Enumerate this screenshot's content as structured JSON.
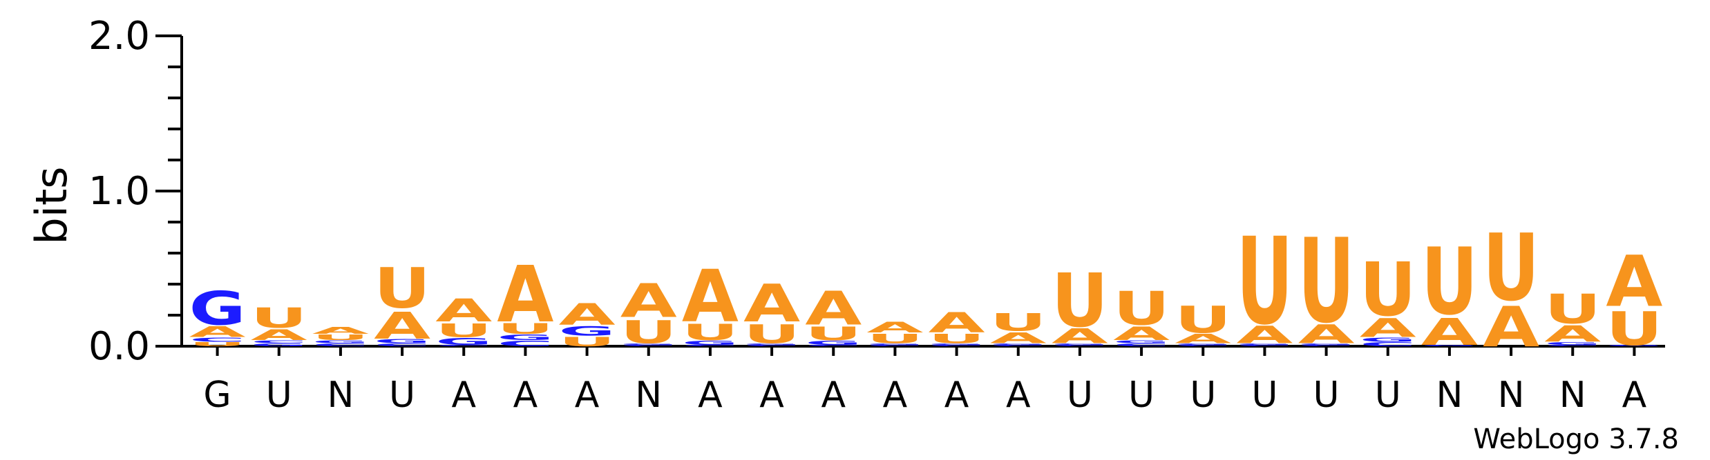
{
  "chart_data": {
    "type": "sequence-logo",
    "ylabel": "bits",
    "ylim": [
      0,
      2.0
    ],
    "yticks": [
      "0.0",
      "1.0",
      "2.0"
    ],
    "colors": {
      "A": "#f7941d",
      "U": "#f7941d",
      "G": "#1c1cff",
      "C": "#1c1cff"
    },
    "positions": [
      {
        "label": "G",
        "stack": [
          {
            "letter": "U",
            "bits": 0.03
          },
          {
            "letter": "C",
            "bits": 0.03
          },
          {
            "letter": "A",
            "bits": 0.08
          },
          {
            "letter": "G",
            "bits": 0.25
          }
        ]
      },
      {
        "label": "U",
        "stack": [
          {
            "letter": "G",
            "bits": 0.02
          },
          {
            "letter": "C",
            "bits": 0.02
          },
          {
            "letter": "A",
            "bits": 0.08
          },
          {
            "letter": "U",
            "bits": 0.15
          }
        ]
      },
      {
        "label": "N",
        "stack": [
          {
            "letter": "C",
            "bits": 0.02
          },
          {
            "letter": "G",
            "bits": 0.02
          },
          {
            "letter": "U",
            "bits": 0.04
          },
          {
            "letter": "A",
            "bits": 0.05
          }
        ]
      },
      {
        "label": "U",
        "stack": [
          {
            "letter": "C",
            "bits": 0.02
          },
          {
            "letter": "G",
            "bits": 0.03
          },
          {
            "letter": "A",
            "bits": 0.2
          },
          {
            "letter": "U",
            "bits": 0.3
          }
        ]
      },
      {
        "label": "A",
        "stack": [
          {
            "letter": "C",
            "bits": 0.01
          },
          {
            "letter": "G",
            "bits": 0.05
          },
          {
            "letter": "U",
            "bits": 0.1
          },
          {
            "letter": "A",
            "bits": 0.17
          }
        ]
      },
      {
        "label": "A",
        "stack": [
          {
            "letter": "C",
            "bits": 0.04
          },
          {
            "letter": "G",
            "bits": 0.04
          },
          {
            "letter": "U",
            "bits": 0.08
          },
          {
            "letter": "A",
            "bits": 0.42
          }
        ]
      },
      {
        "label": "A",
        "stack": [
          {
            "letter": "U",
            "bits": 0.07
          },
          {
            "letter": "G",
            "bits": 0.07
          },
          {
            "letter": "A",
            "bits": 0.16
          }
        ]
      },
      {
        "label": "N",
        "stack": [
          {
            "letter": "C",
            "bits": 0.01
          },
          {
            "letter": "G",
            "bits": 0.01
          },
          {
            "letter": "U",
            "bits": 0.17
          },
          {
            "letter": "A",
            "bits": 0.25
          }
        ]
      },
      {
        "label": "A",
        "stack": [
          {
            "letter": "C",
            "bits": 0.01
          },
          {
            "letter": "G",
            "bits": 0.03
          },
          {
            "letter": "U",
            "bits": 0.12
          },
          {
            "letter": "A",
            "bits": 0.39
          }
        ]
      },
      {
        "label": "A",
        "stack": [
          {
            "letter": "C",
            "bits": 0.01
          },
          {
            "letter": "G",
            "bits": 0.01
          },
          {
            "letter": "U",
            "bits": 0.14
          },
          {
            "letter": "A",
            "bits": 0.28
          }
        ]
      },
      {
        "label": "A",
        "stack": [
          {
            "letter": "C",
            "bits": 0.01
          },
          {
            "letter": "G",
            "bits": 0.03
          },
          {
            "letter": "U",
            "bits": 0.1
          },
          {
            "letter": "A",
            "bits": 0.25
          }
        ]
      },
      {
        "label": "A",
        "stack": [
          {
            "letter": "C",
            "bits": 0.01
          },
          {
            "letter": "G",
            "bits": 0.01
          },
          {
            "letter": "U",
            "bits": 0.07
          },
          {
            "letter": "A",
            "bits": 0.08
          }
        ]
      },
      {
        "label": "A",
        "stack": [
          {
            "letter": "C",
            "bits": 0.01
          },
          {
            "letter": "G",
            "bits": 0.01
          },
          {
            "letter": "U",
            "bits": 0.07
          },
          {
            "letter": "A",
            "bits": 0.15
          }
        ]
      },
      {
        "label": "A",
        "stack": [
          {
            "letter": "C",
            "bits": 0.01
          },
          {
            "letter": "G",
            "bits": 0.01
          },
          {
            "letter": "A",
            "bits": 0.08
          },
          {
            "letter": "U",
            "bits": 0.13
          }
        ]
      },
      {
        "label": "U",
        "stack": [
          {
            "letter": "C",
            "bits": 0.01
          },
          {
            "letter": "G",
            "bits": 0.01
          },
          {
            "letter": "A",
            "bits": 0.11
          },
          {
            "letter": "U",
            "bits": 0.4
          }
        ]
      },
      {
        "label": "U",
        "stack": [
          {
            "letter": "C",
            "bits": 0.02
          },
          {
            "letter": "G",
            "bits": 0.02
          },
          {
            "letter": "A",
            "bits": 0.1
          },
          {
            "letter": "U",
            "bits": 0.25
          }
        ]
      },
      {
        "label": "U",
        "stack": [
          {
            "letter": "C",
            "bits": 0.01
          },
          {
            "letter": "G",
            "bits": 0.01
          },
          {
            "letter": "A",
            "bits": 0.07
          },
          {
            "letter": "U",
            "bits": 0.2
          }
        ]
      },
      {
        "label": "U",
        "stack": [
          {
            "letter": "C",
            "bits": 0.01
          },
          {
            "letter": "G",
            "bits": 0.01
          },
          {
            "letter": "A",
            "bits": 0.13
          },
          {
            "letter": "U",
            "bits": 0.65
          }
        ]
      },
      {
        "label": "U",
        "stack": [
          {
            "letter": "C",
            "bits": 0.01
          },
          {
            "letter": "G",
            "bits": 0.01
          },
          {
            "letter": "A",
            "bits": 0.14
          },
          {
            "letter": "U",
            "bits": 0.63
          }
        ]
      },
      {
        "label": "U",
        "stack": [
          {
            "letter": "C",
            "bits": 0.03
          },
          {
            "letter": "G",
            "bits": 0.03
          },
          {
            "letter": "A",
            "bits": 0.14
          },
          {
            "letter": "U",
            "bits": 0.4
          }
        ]
      },
      {
        "label": "N",
        "stack": [
          {
            "letter": "G",
            "bits": 0.01
          },
          {
            "letter": "A",
            "bits": 0.2
          },
          {
            "letter": "U",
            "bits": 0.5
          }
        ]
      },
      {
        "label": "N",
        "stack": [
          {
            "letter": "A",
            "bits": 0.3
          },
          {
            "letter": "U",
            "bits": 0.5
          }
        ]
      },
      {
        "label": "N",
        "stack": [
          {
            "letter": "C",
            "bits": 0.01
          },
          {
            "letter": "G",
            "bits": 0.02
          },
          {
            "letter": "A",
            "bits": 0.12
          },
          {
            "letter": "U",
            "bits": 0.22
          }
        ]
      },
      {
        "label": "A",
        "stack": [
          {
            "letter": "G",
            "bits": 0.01
          },
          {
            "letter": "U",
            "bits": 0.25
          },
          {
            "letter": "A",
            "bits": 0.38
          }
        ]
      }
    ]
  },
  "footer": {
    "brand": "WebLogo 3.7.8"
  }
}
